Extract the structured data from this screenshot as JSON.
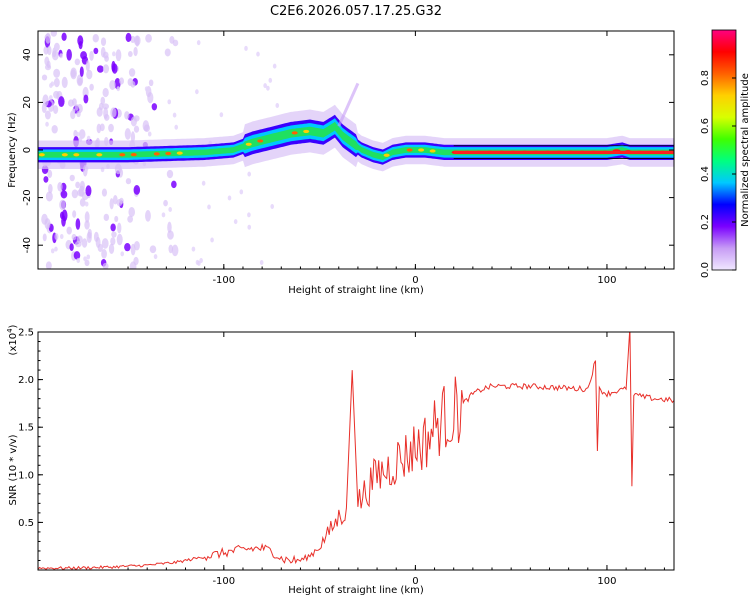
{
  "chart_data": [
    {
      "type": "heatmap",
      "title": "C2E6.2026.057.17.25.G32",
      "xlabel": "Height of straight line (km)",
      "ylabel": "Frequency (Hz)",
      "xlim": [
        -197,
        135
      ],
      "ylim": [
        -50,
        50
      ],
      "x_ticks": [
        -100,
        0,
        100
      ],
      "x_tick_labels": [
        "-100",
        "0",
        "100"
      ],
      "y_ticks": [
        -40,
        -20,
        0,
        20,
        40
      ],
      "y_tick_labels": [
        "-40",
        "-20",
        "0",
        "20",
        "40"
      ],
      "trace_center": [
        [
          -197,
          -2
        ],
        [
          -170,
          -2
        ],
        [
          -150,
          -2
        ],
        [
          -130,
          -1.5
        ],
        [
          -110,
          -1
        ],
        [
          -95,
          0
        ],
        [
          -85,
          3
        ],
        [
          -75,
          5
        ],
        [
          -65,
          7
        ],
        [
          -55,
          8
        ],
        [
          -48,
          7
        ],
        [
          -42,
          10
        ],
        [
          -38,
          6
        ],
        [
          -33,
          3
        ],
        [
          -28,
          0
        ],
        [
          -22,
          -2
        ],
        [
          -17,
          -3
        ],
        [
          -12,
          -1
        ],
        [
          -5,
          0
        ],
        [
          5,
          0
        ],
        [
          15,
          -1
        ],
        [
          40,
          -1
        ],
        [
          70,
          -1
        ],
        [
          90,
          -1
        ],
        [
          100,
          -1
        ],
        [
          108,
          0
        ],
        [
          112,
          -1
        ],
        [
          135,
          -1
        ]
      ],
      "colorbar": {
        "label": "Normalized spectral amplitude",
        "range": [
          0.0,
          1.0
        ],
        "ticks": [
          0.0,
          0.2,
          0.4,
          0.6,
          0.8
        ],
        "tick_labels": [
          "0.0",
          "0.2",
          "0.4",
          "0.6",
          "0.8"
        ],
        "colors": [
          "#f0e8ff",
          "#c79cf5",
          "#7a00ff",
          "#0000ff",
          "#00c8ff",
          "#00ff80",
          "#40ff00",
          "#d8ff00",
          "#ffd000",
          "#ff6000",
          "#ff0000",
          "#ff0080"
        ]
      }
    },
    {
      "type": "line",
      "xlabel": "Height of straight line (km)",
      "ylabel": "SNR (10 * v/v)",
      "y_scale_label": "(x10",
      "y_scale_exp": "4",
      "xlim": [
        -197,
        135
      ],
      "ylim": [
        0,
        2.5
      ],
      "x_ticks": [
        -100,
        0,
        100
      ],
      "x_tick_labels": [
        "-100",
        "0",
        "100"
      ],
      "y_ticks": [
        0.5,
        1.0,
        1.5,
        2.0,
        2.5
      ],
      "y_tick_labels": [
        "0.5",
        "1.0",
        "1.5",
        "2.0",
        "2.5"
      ],
      "line_color": "#e8302a",
      "series": [
        {
          "name": "SNR",
          "x": [
            -197,
            -180,
            -160,
            -140,
            -125,
            -115,
            -105,
            -95,
            -88,
            -80,
            -75,
            -70,
            -65,
            -60,
            -55,
            -50,
            -45,
            -40,
            -36,
            -33,
            -30,
            -25,
            -20,
            -15,
            -10,
            -5,
            0,
            5,
            10,
            15,
            20,
            25,
            30,
            35,
            40,
            50,
            60,
            70,
            80,
            90,
            94,
            95,
            96,
            100,
            105,
            110,
            112,
            113,
            114,
            118,
            125,
            135
          ],
          "values": [
            0.02,
            0.02,
            0.03,
            0.05,
            0.08,
            0.12,
            0.16,
            0.2,
            0.22,
            0.23,
            0.2,
            0.12,
            0.1,
            0.1,
            0.15,
            0.25,
            0.4,
            0.55,
            0.65,
            2.1,
            0.7,
            0.85,
            1.0,
            1.05,
            1.15,
            1.2,
            1.3,
            1.35,
            1.5,
            1.6,
            1.65,
            1.75,
            1.85,
            1.9,
            1.93,
            1.93,
            1.93,
            1.92,
            1.91,
            1.9,
            2.2,
            1.25,
            1.9,
            1.85,
            1.88,
            1.9,
            2.55,
            0.88,
            1.85,
            1.82,
            1.8,
            1.78
          ]
        }
      ]
    }
  ]
}
